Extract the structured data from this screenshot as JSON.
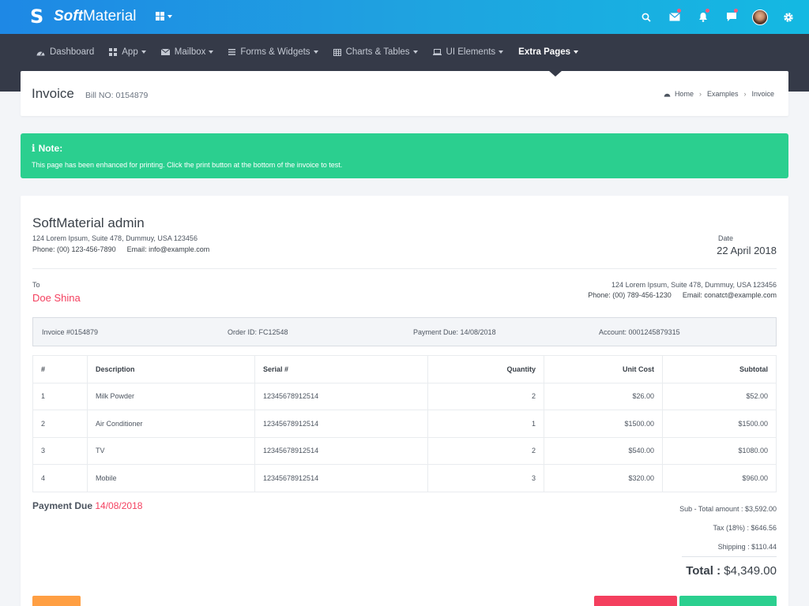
{
  "brand": {
    "bold": "Soft",
    "rest": "Material"
  },
  "nav": {
    "items": [
      {
        "label": "Dashboard",
        "icon": "dashboard-icon"
      },
      {
        "label": "App",
        "icon": "grid-icon"
      },
      {
        "label": "Mailbox",
        "icon": "envelope-icon"
      },
      {
        "label": "Forms & Widgets",
        "icon": "list-icon"
      },
      {
        "label": "Charts & Tables",
        "icon": "table-icon"
      },
      {
        "label": "UI Elements",
        "icon": "monitor-icon"
      },
      {
        "label": "Extra Pages",
        "icon": ""
      }
    ]
  },
  "page": {
    "title": "Invoice",
    "subtitle": "Bill NO: 0154879"
  },
  "breadcrumb": {
    "home": "Home",
    "examples": "Examples",
    "current": "Invoice"
  },
  "note": {
    "title": "Note:",
    "text": "This page has been enhanced for printing. Click the print button at the bottom of the invoice to test."
  },
  "invoice": {
    "from_name": "SoftMaterial admin",
    "from_address": "124 Lorem Ipsum, Suite 478, Dummuy, USA 123456",
    "from_phone": "Phone: (00) 123-456-7890",
    "from_email": "Email: info@example.com",
    "date_label": "Date",
    "date_value": "22 April 2018",
    "to_label": "To",
    "to_name": "Doe Shina",
    "to_address": "124 Lorem Ipsum, Suite 478, Dummuy, USA 123456",
    "to_phone": "Phone: (00) 789-456-1230",
    "to_email": "Email: conatct@example.com",
    "meta": {
      "invoice": "Invoice #0154879",
      "order": "Order ID: FC12548",
      "payment_due": "Payment Due: 14/08/2018",
      "account": "Account: 0001245879315"
    },
    "columns": [
      "#",
      "Description",
      "Serial #",
      "Quantity",
      "Unit Cost",
      "Subtotal"
    ],
    "rows": [
      {
        "no": "1",
        "desc": "Milk Powder",
        "serial": "12345678912514",
        "qty": "2",
        "unit": "$26.00",
        "subtotal": "$52.00"
      },
      {
        "no": "2",
        "desc": "Air Conditioner",
        "serial": "12345678912514",
        "qty": "1",
        "unit": "$1500.00",
        "subtotal": "$1500.00"
      },
      {
        "no": "3",
        "desc": "TV",
        "serial": "12345678912514",
        "qty": "2",
        "unit": "$540.00",
        "subtotal": "$1080.00"
      },
      {
        "no": "4",
        "desc": "Mobile",
        "serial": "12345678912514",
        "qty": "3",
        "unit": "$320.00",
        "subtotal": "$960.00"
      }
    ],
    "payment_due_label": "Payment Due",
    "payment_due_date": "14/08/2018",
    "sub_total": "Sub - Total amount : $3,592.00",
    "tax": "Tax (18%) : $646.56",
    "shipping": "Shipping : $110.44",
    "total_label": "Total :",
    "total_value": "$4,349.00"
  },
  "colors": {
    "accent": "#1e88e5",
    "success": "#2bcf8f",
    "danger": "#f43f5e",
    "warning": "#ff9f43",
    "nav": "#353a48"
  }
}
